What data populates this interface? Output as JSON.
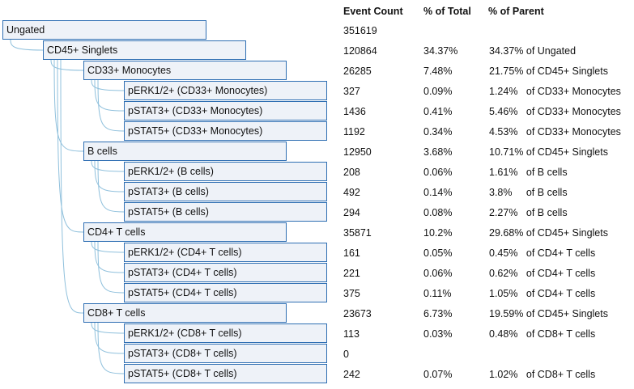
{
  "headers": {
    "event_count": "Event Count",
    "pct_total": "% of Total",
    "pct_parent": "% of Parent"
  },
  "rows": [
    {
      "name": "Ungated",
      "level": 0,
      "count": "351619",
      "pct_total": "",
      "pct_parent": ""
    },
    {
      "name": "CD45+ Singlets",
      "level": 1,
      "count": "120864",
      "pct_total": "34.37%",
      "pct_parent": "34.37% of Ungated"
    },
    {
      "name": "CD33+ Monocytes",
      "level": 2,
      "count": "26285",
      "pct_total": "7.48%",
      "pct_parent": "21.75% of CD45+ Singlets"
    },
    {
      "name": "pERK1/2+ (CD33+ Monocytes)",
      "level": 3,
      "count": "327",
      "pct_total": "0.09%",
      "pct_parent": "1.24%   of CD33+ Monocytes"
    },
    {
      "name": "pSTAT3+ (CD33+ Monocytes)",
      "level": 3,
      "count": "1436",
      "pct_total": "0.41%",
      "pct_parent": "5.46%   of CD33+ Monocytes"
    },
    {
      "name": "pSTAT5+ (CD33+ Monocytes)",
      "level": 3,
      "count": "1192",
      "pct_total": "0.34%",
      "pct_parent": "4.53%   of CD33+ Monocytes"
    },
    {
      "name": "B cells",
      "level": 2,
      "count": "12950",
      "pct_total": "3.68%",
      "pct_parent": "10.71% of CD45+ Singlets"
    },
    {
      "name": "pERK1/2+ (B cells)",
      "level": 3,
      "count": "208",
      "pct_total": "0.06%",
      "pct_parent": "1.61%   of B cells"
    },
    {
      "name": "pSTAT3+ (B cells)",
      "level": 3,
      "count": "492",
      "pct_total": "0.14%",
      "pct_parent": "3.8%     of B cells"
    },
    {
      "name": "pSTAT5+ (B cells)",
      "level": 3,
      "count": "294",
      "pct_total": "0.08%",
      "pct_parent": "2.27%   of B cells"
    },
    {
      "name": "CD4+ T cells",
      "level": 2,
      "count": "35871",
      "pct_total": "10.2%",
      "pct_parent": "29.68% of CD45+ Singlets"
    },
    {
      "name": "pERK1/2+ (CD4+ T cells)",
      "level": 3,
      "count": "161",
      "pct_total": "0.05%",
      "pct_parent": "0.45%   of CD4+ T cells"
    },
    {
      "name": "pSTAT3+ (CD4+ T cells)",
      "level": 3,
      "count": "221",
      "pct_total": "0.06%",
      "pct_parent": "0.62%   of CD4+ T cells"
    },
    {
      "name": "pSTAT5+ (CD4+ T cells)",
      "level": 3,
      "count": "375",
      "pct_total": "0.11%",
      "pct_parent": "1.05%   of CD4+ T cells"
    },
    {
      "name": "CD8+ T cells",
      "level": 2,
      "count": "23673",
      "pct_total": "6.73%",
      "pct_parent": "19.59% of CD45+ Singlets"
    },
    {
      "name": "pERK1/2+ (CD8+ T cells)",
      "level": 3,
      "count": "113",
      "pct_total": "0.03%",
      "pct_parent": "0.48%   of CD8+ T cells"
    },
    {
      "name": "pSTAT3+ (CD8+ T cells)",
      "level": 3,
      "count": "0",
      "pct_total": "",
      "pct_parent": ""
    },
    {
      "name": "pSTAT5+ (CD8+ T cells)",
      "level": 3,
      "count": "242",
      "pct_total": "0.07%",
      "pct_parent": "1.02%   of CD8+ T cells"
    }
  ],
  "colors": {
    "node_border": "#2f6fb3",
    "node_fill": "#eef2f8",
    "connector": "#8fc0dc"
  }
}
